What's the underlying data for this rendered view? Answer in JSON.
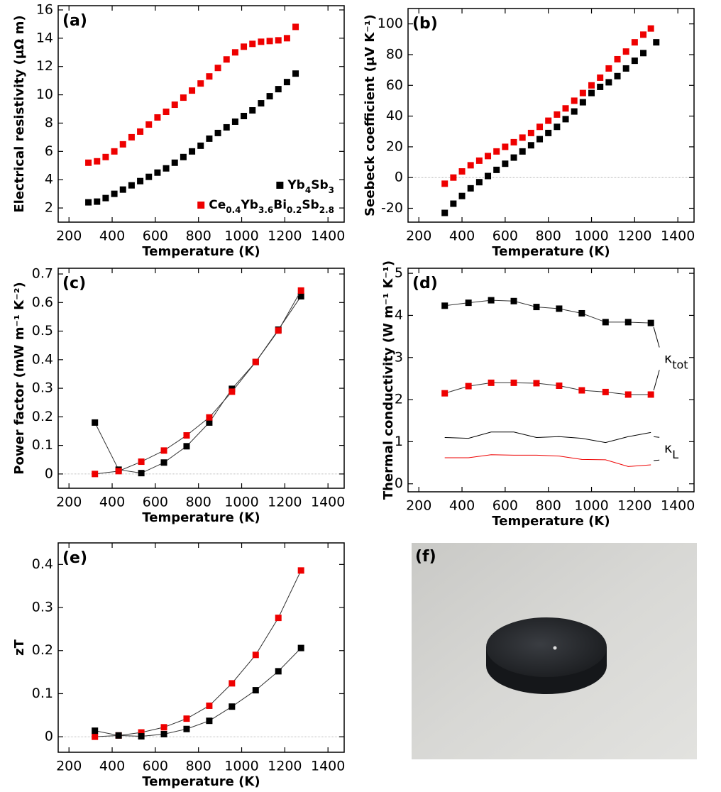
{
  "chart_data": [
    {
      "type": "scatter",
      "label": "(a)",
      "xlabel": "Temperature (K)",
      "ylabel": "Electrical resistivity (μΩ m)",
      "xlim": [
        150,
        1475
      ],
      "xticks": [
        200,
        400,
        600,
        800,
        1000,
        1200,
        1400
      ],
      "ylim": [
        1,
        16.3
      ],
      "yticks": [
        2,
        4,
        6,
        8,
        10,
        12,
        14,
        16
      ],
      "legend": "lower right",
      "series": [
        {
          "name": "Yb4Sb3",
          "color": "#000000",
          "marker": true,
          "x": [
            290,
            330,
            370,
            410,
            450,
            490,
            530,
            570,
            610,
            650,
            690,
            730,
            770,
            810,
            850,
            890,
            930,
            970,
            1010,
            1050,
            1090,
            1130,
            1170,
            1210,
            1250
          ],
          "values": [
            2.4,
            2.45,
            2.7,
            3.0,
            3.3,
            3.6,
            3.9,
            4.2,
            4.5,
            4.8,
            5.2,
            5.6,
            6.0,
            6.4,
            6.9,
            7.3,
            7.7,
            8.1,
            8.5,
            8.9,
            9.4,
            9.9,
            10.4,
            10.9,
            11.5
          ]
        },
        {
          "name": "Ce0.4Yb3.6Bi0.2Sb2.8",
          "color": "#ee0000",
          "marker": true,
          "x": [
            290,
            330,
            370,
            410,
            450,
            490,
            530,
            570,
            610,
            650,
            690,
            730,
            770,
            810,
            850,
            890,
            930,
            970,
            1010,
            1050,
            1090,
            1130,
            1170,
            1210,
            1250
          ],
          "values": [
            5.2,
            5.3,
            5.6,
            6.0,
            6.5,
            7.0,
            7.4,
            7.9,
            8.4,
            8.8,
            9.3,
            9.8,
            10.3,
            10.8,
            11.3,
            11.9,
            12.5,
            13.0,
            13.4,
            13.6,
            13.75,
            13.8,
            13.85,
            14.0,
            14.8
          ]
        }
      ]
    },
    {
      "type": "scatter",
      "label": "(b)",
      "xlabel": "Temperature (K)",
      "ylabel": "Seebeck coefficient (μV K⁻¹)",
      "xlim": [
        150,
        1475
      ],
      "xticks": [
        200,
        400,
        600,
        800,
        1000,
        1200,
        1400
      ],
      "ylim": [
        -29,
        110
      ],
      "yticks": [
        -20,
        0,
        20,
        40,
        60,
        80,
        100
      ],
      "zero_line": true,
      "series": [
        {
          "color": "#ee0000",
          "marker": true,
          "x": [
            320,
            360,
            400,
            440,
            480,
            520,
            560,
            600,
            640,
            680,
            720,
            760,
            800,
            840,
            880,
            920,
            960,
            1000,
            1040,
            1080,
            1120,
            1160,
            1200,
            1240,
            1275
          ],
          "values": [
            -4,
            0,
            4,
            8,
            11,
            14,
            17,
            20,
            23,
            26,
            29,
            33,
            37,
            41,
            45,
            50,
            55,
            60,
            65,
            71,
            77,
            82,
            88,
            93,
            97
          ]
        },
        {
          "color": "#000000",
          "marker": true,
          "x": [
            320,
            360,
            400,
            440,
            480,
            520,
            560,
            600,
            640,
            680,
            720,
            760,
            800,
            840,
            880,
            920,
            960,
            1000,
            1040,
            1080,
            1120,
            1160,
            1200,
            1240,
            1300
          ],
          "values": [
            -23,
            -17,
            -12,
            -7,
            -3,
            1,
            5,
            9,
            13,
            17,
            21,
            25,
            29,
            33,
            38,
            43,
            49,
            55,
            59,
            62,
            66,
            71,
            76,
            81,
            88
          ]
        }
      ]
    },
    {
      "type": "line",
      "label": "(c)",
      "xlabel": "Temperature (K)",
      "ylabel": "Power factor (mW m⁻¹ K⁻²)",
      "xlim": [
        150,
        1475
      ],
      "xticks": [
        200,
        400,
        600,
        800,
        1000,
        1200,
        1400
      ],
      "ylim": [
        -0.05,
        0.72
      ],
      "yticks": [
        0,
        0.1,
        0.2,
        0.3,
        0.4,
        0.5,
        0.6,
        0.7
      ],
      "zero_line": true,
      "series": [
        {
          "color": "#000000",
          "marker": true,
          "line_color": "#333333",
          "x": [
            320,
            430,
            535,
            640,
            745,
            850,
            955,
            1065,
            1170,
            1275
          ],
          "values": [
            0.18,
            0.015,
            0.003,
            0.04,
            0.097,
            0.18,
            0.298,
            0.392,
            0.505,
            0.622
          ]
        },
        {
          "color": "#ee0000",
          "marker": true,
          "line_color": "#333333",
          "x": [
            320,
            430,
            535,
            640,
            745,
            850,
            955,
            1065,
            1170,
            1275
          ],
          "values": [
            0.0,
            0.01,
            0.043,
            0.082,
            0.135,
            0.198,
            0.288,
            0.392,
            0.502,
            0.642
          ]
        }
      ]
    },
    {
      "type": "line",
      "label": "(d)",
      "xlabel": "Temperature (K)",
      "ylabel": "Thermal conductivity (W m⁻¹ K⁻¹)",
      "xlim": [
        150,
        1475
      ],
      "xticks": [
        200,
        400,
        600,
        800,
        1000,
        1200,
        1400
      ],
      "ylim": [
        -0.19,
        5.12
      ],
      "yticks": [
        0,
        1,
        2,
        3,
        4,
        5
      ],
      "annotations": [
        {
          "text": "κ",
          "subscript": "tot"
        },
        {
          "text": "κ",
          "subscript": "L"
        }
      ],
      "series": [
        {
          "color": "#000000",
          "marker": true,
          "line_color": "#333333",
          "x": [
            320,
            430,
            535,
            640,
            745,
            850,
            955,
            1065,
            1170,
            1275
          ],
          "values": [
            4.23,
            4.3,
            4.36,
            4.34,
            4.2,
            4.16,
            4.05,
            3.84,
            3.84,
            3.82
          ]
        },
        {
          "color": "#ee0000",
          "marker": true,
          "line_color": "#333333",
          "x": [
            320,
            430,
            535,
            640,
            745,
            850,
            955,
            1065,
            1170,
            1275
          ],
          "values": [
            2.15,
            2.32,
            2.4,
            2.4,
            2.39,
            2.33,
            2.22,
            2.18,
            2.12,
            2.12
          ]
        },
        {
          "color": "#000000",
          "marker": false,
          "line_color": "#000000",
          "x": [
            320,
            430,
            535,
            640,
            745,
            850,
            955,
            1065,
            1170,
            1275
          ],
          "values": [
            1.1,
            1.08,
            1.23,
            1.23,
            1.1,
            1.12,
            1.08,
            0.98,
            1.12,
            1.22
          ]
        },
        {
          "color": "#ee0000",
          "marker": false,
          "line_color": "#ee0000",
          "x": [
            320,
            430,
            535,
            640,
            745,
            850,
            955,
            1065,
            1170,
            1275
          ],
          "values": [
            0.62,
            0.62,
            0.69,
            0.68,
            0.68,
            0.66,
            0.58,
            0.57,
            0.41,
            0.45
          ]
        }
      ]
    },
    {
      "type": "line",
      "label": "(e)",
      "xlabel": "Temperature (K)",
      "ylabel": "zT",
      "xlim": [
        150,
        1475
      ],
      "xticks": [
        200,
        400,
        600,
        800,
        1000,
        1200,
        1400
      ],
      "ylim": [
        -0.036,
        0.45
      ],
      "yticks": [
        0,
        0.1,
        0.2,
        0.3,
        0.4
      ],
      "zero_line": true,
      "series": [
        {
          "color": "#ee0000",
          "marker": true,
          "line_color": "#333333",
          "x": [
            320,
            430,
            535,
            640,
            745,
            850,
            955,
            1065,
            1170,
            1275
          ],
          "values": [
            0.0,
            0.003,
            0.01,
            0.022,
            0.042,
            0.072,
            0.124,
            0.19,
            0.276,
            0.386
          ]
        },
        {
          "color": "#000000",
          "marker": true,
          "line_color": "#333333",
          "x": [
            320,
            430,
            535,
            640,
            745,
            850,
            955,
            1065,
            1170,
            1275
          ],
          "values": [
            0.014,
            0.003,
            0.001,
            0.006,
            0.018,
            0.037,
            0.07,
            0.108,
            0.152,
            0.206
          ]
        }
      ]
    }
  ],
  "photo": {
    "label": "(f)"
  }
}
